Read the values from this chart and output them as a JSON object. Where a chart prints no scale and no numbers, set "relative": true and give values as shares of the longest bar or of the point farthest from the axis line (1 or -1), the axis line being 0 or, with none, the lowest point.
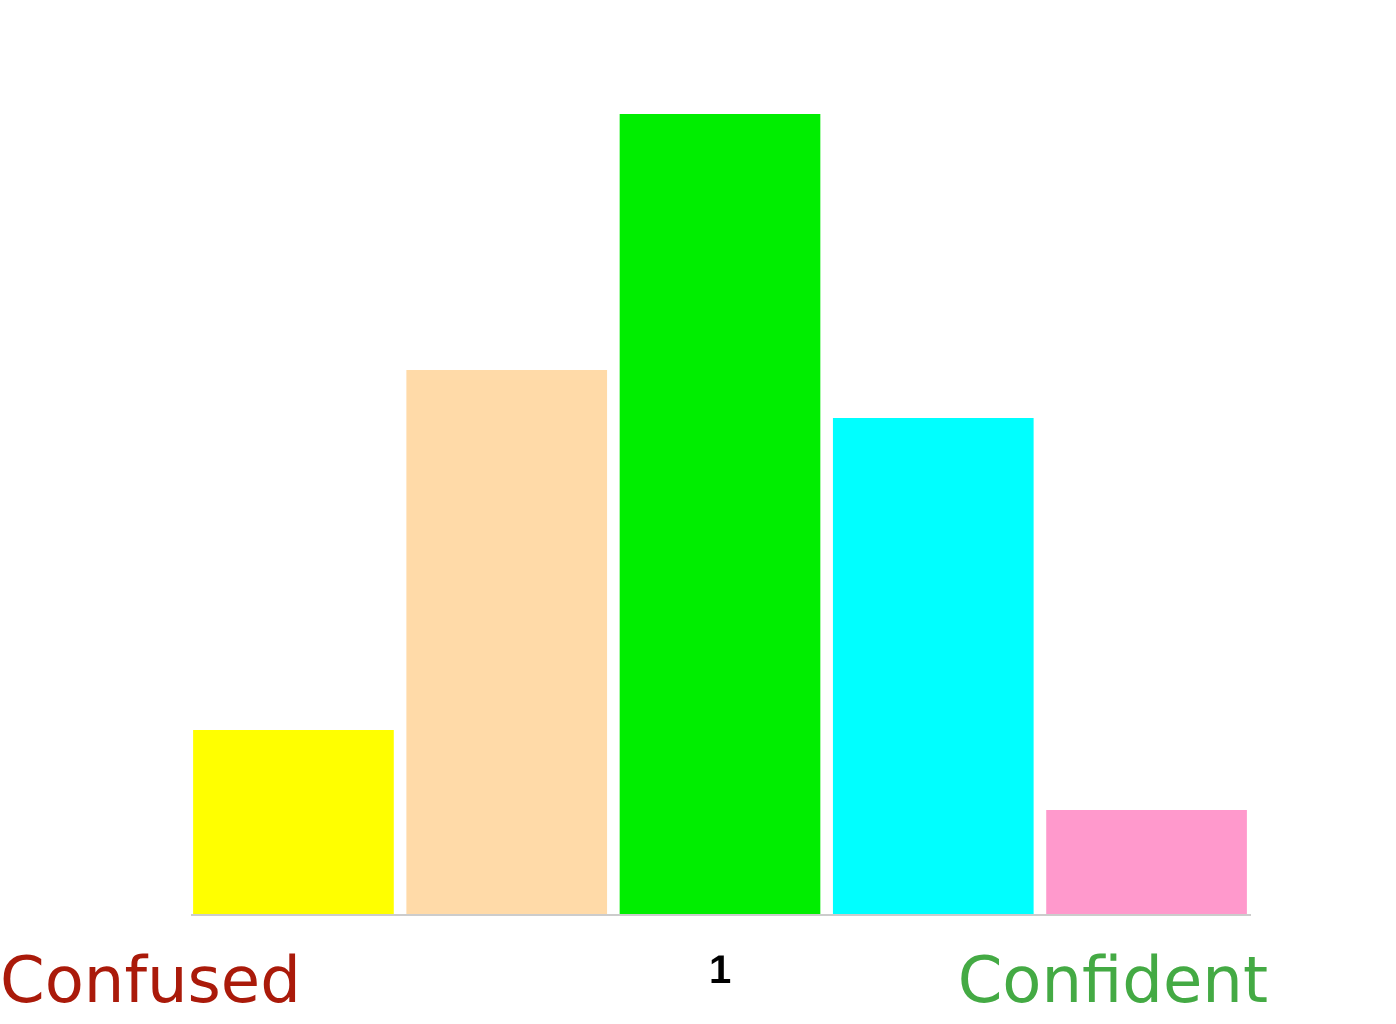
{
  "chart_data": {
    "type": "bar",
    "relative": true,
    "categories": [
      null,
      null,
      "1",
      null,
      null
    ],
    "values": [
      0.23,
      0.68,
      1,
      0.62,
      0.13
    ],
    "colors": [
      "#ffff00",
      "#ffdaa8",
      "#00ee00",
      "#00ffff",
      "#ff99cc"
    ],
    "annotations": [
      "Confused",
      "Confident"
    ]
  }
}
